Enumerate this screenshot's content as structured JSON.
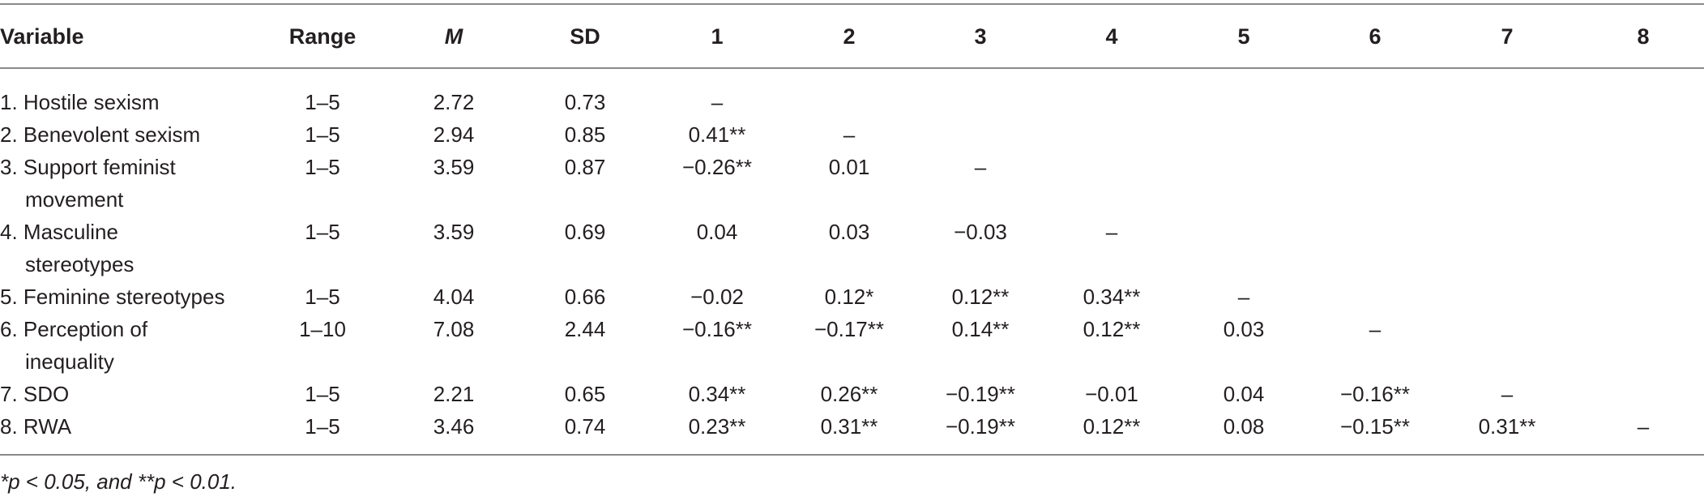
{
  "headers": [
    "Variable",
    "Range",
    "M",
    "SD",
    "1",
    "2",
    "3",
    "4",
    "5",
    "6",
    "7",
    "8"
  ],
  "rows": [
    {
      "label1": "1. Hostile sexism",
      "label2": "",
      "range": "1–5",
      "m": "2.72",
      "sd": "0.73",
      "c": [
        "–",
        "",
        "",
        "",
        "",
        "",
        "",
        ""
      ]
    },
    {
      "label1": "2. Benevolent sexism",
      "label2": "",
      "range": "1–5",
      "m": "2.94",
      "sd": "0.85",
      "c": [
        "0.41**",
        "–",
        "",
        "",
        "",
        "",
        "",
        ""
      ]
    },
    {
      "label1": "3. Support feminist",
      "label2": "movement",
      "range": "1–5",
      "m": "3.59",
      "sd": "0.87",
      "c": [
        "−0.26**",
        "0.01",
        "–",
        "",
        "",
        "",
        "",
        ""
      ]
    },
    {
      "label1": "4. Masculine",
      "label2": "stereotypes",
      "range": "1–5",
      "m": "3.59",
      "sd": "0.69",
      "c": [
        "0.04",
        "0.03",
        "−0.03",
        "–",
        "",
        "",
        "",
        ""
      ]
    },
    {
      "label1": "5. Feminine stereotypes",
      "label2": "",
      "range": "1–5",
      "m": "4.04",
      "sd": "0.66",
      "c": [
        "−0.02",
        "0.12*",
        "0.12**",
        "0.34**",
        "–",
        "",
        "",
        ""
      ]
    },
    {
      "label1": "6. Perception of",
      "label2": "inequality",
      "range": "1–10",
      "m": "7.08",
      "sd": "2.44",
      "c": [
        "−0.16**",
        "−0.17**",
        "0.14**",
        "0.12**",
        "0.03",
        "–",
        "",
        ""
      ]
    },
    {
      "label1": "7. SDO",
      "label2": "",
      "range": "1–5",
      "m": "2.21",
      "sd": "0.65",
      "c": [
        "0.34**",
        "0.26**",
        "−0.19**",
        "−0.01",
        "0.04",
        "−0.16**",
        "–",
        ""
      ]
    },
    {
      "label1": "8. RWA",
      "label2": "",
      "range": "1–5",
      "m": "3.46",
      "sd": "0.74",
      "c": [
        "0.23**",
        "0.31**",
        "−0.19**",
        "0.12**",
        "0.08",
        "−0.15**",
        "0.31**",
        "–"
      ]
    }
  ],
  "note": "*p < 0.05, and **p < 0.01."
}
